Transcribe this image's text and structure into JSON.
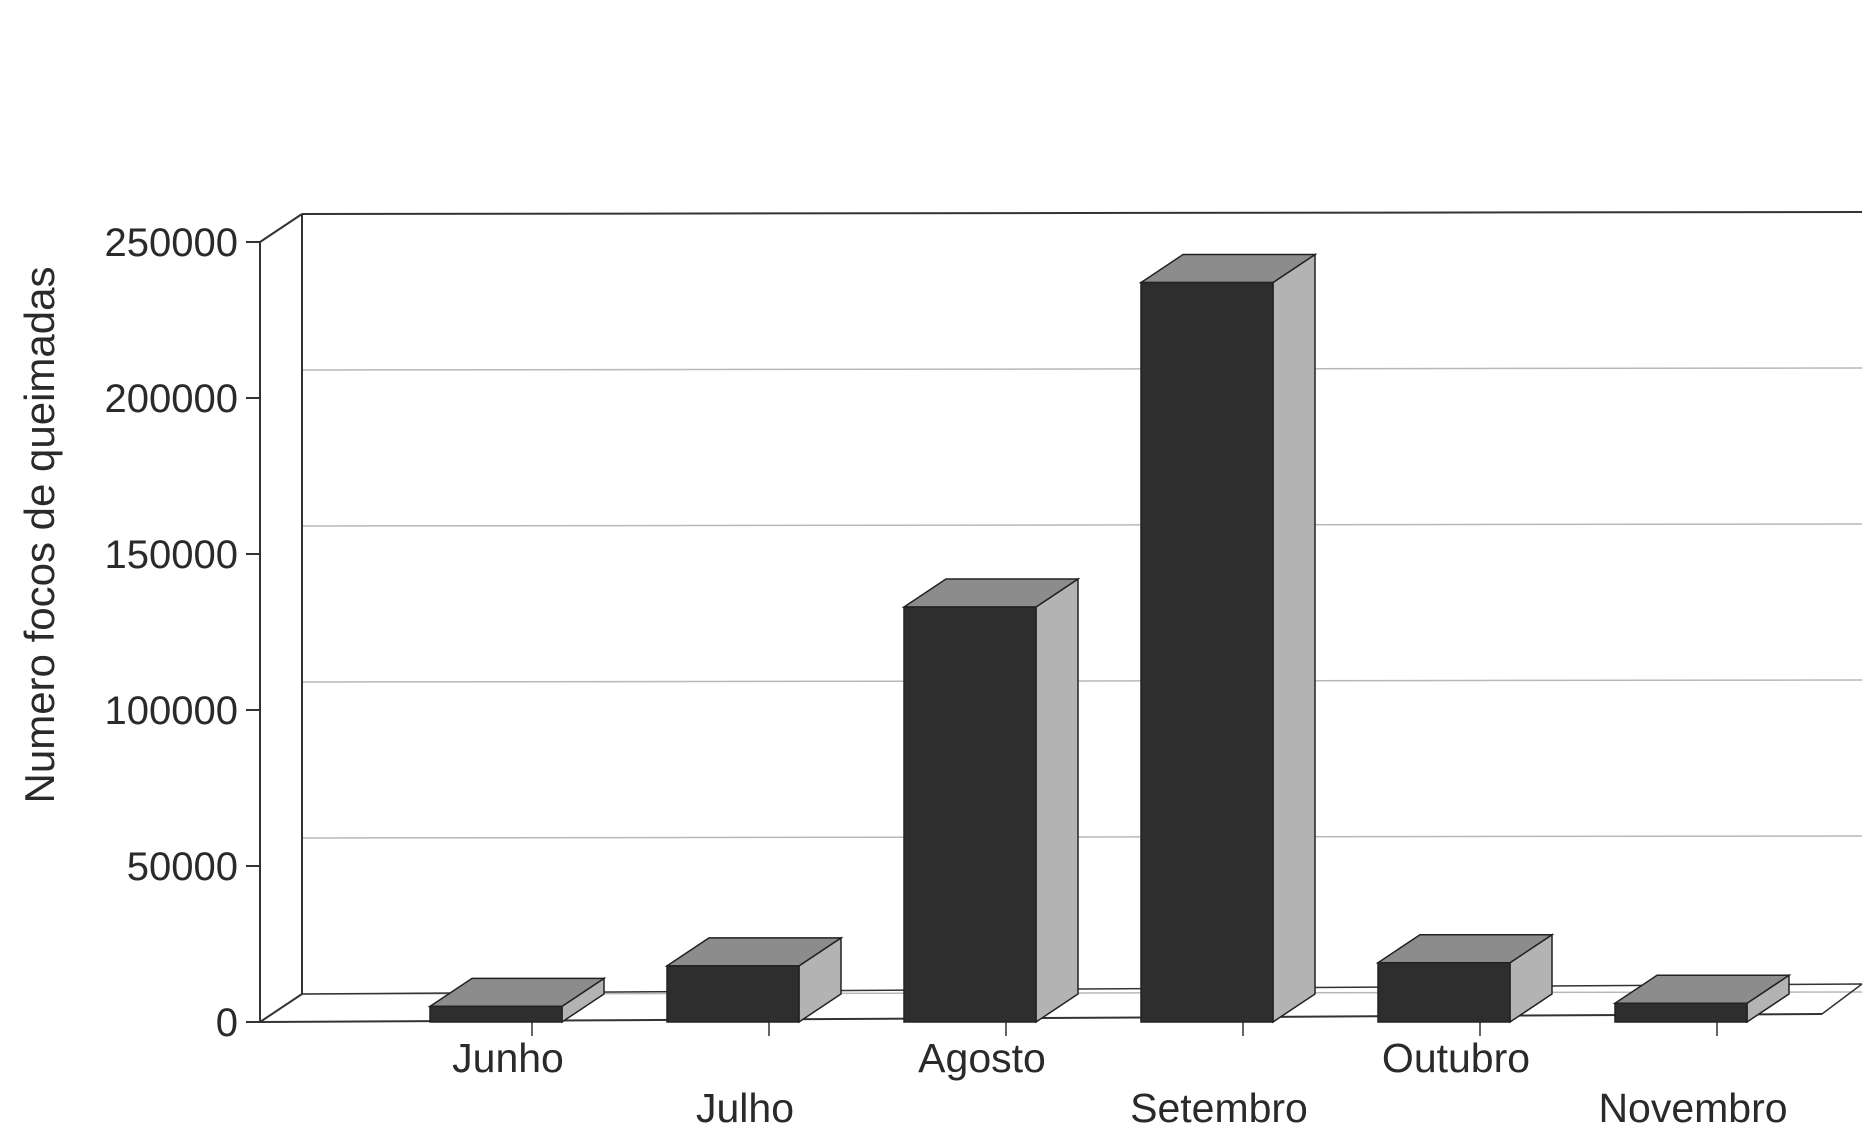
{
  "chart_data": {
    "type": "bar",
    "title": "",
    "xlabel": "",
    "ylabel": "Numero focos de queimadas",
    "categories": [
      "Junho",
      "Julho",
      "Agosto",
      "Setembro",
      "Outubro",
      "Novembro"
    ],
    "values": [
      5000,
      18000,
      133000,
      237000,
      19000,
      6000
    ],
    "yticks": [
      "0",
      "50000",
      "100000",
      "150000",
      "200000",
      "250000"
    ],
    "ylim": [
      0,
      250000
    ],
    "grid": true,
    "style": "3d",
    "colors": {
      "bar_front": "#2e2e2e",
      "bar_top": "#8c8c8c",
      "bar_side": "#b3b3b3",
      "axis": "#333333",
      "grid": "#b8b8b8"
    }
  }
}
